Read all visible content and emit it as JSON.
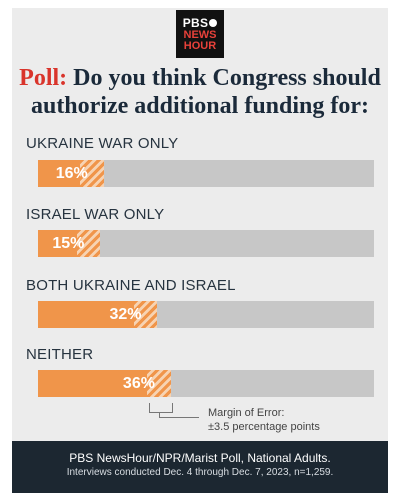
{
  "logo": {
    "line1": "PBS",
    "line2": "NEWS",
    "line3": "HOUR"
  },
  "title": {
    "prefix": "Poll:",
    "line1": " Do you think Congress should",
    "line2": "authorize additional funding for:"
  },
  "chart_data": {
    "type": "bar",
    "orientation": "horizontal",
    "categories": [
      "UKRAINE WAR ONLY",
      "ISRAEL WAR ONLY",
      "BOTH UKRAINE AND ISRAEL",
      "NEITHER"
    ],
    "values": [
      16,
      15,
      32,
      36
    ],
    "value_labels": [
      "16%",
      "15%",
      "32%",
      "36%"
    ],
    "margin_of_error": 3.5,
    "xlim": [
      0,
      100
    ],
    "colors": {
      "bar": "#f0954a",
      "track": "#c7c7c7",
      "moe_hatch": "#f7d3b2"
    }
  },
  "moe_note": {
    "line1": "Margin of Error:",
    "line2": "±3.5 percentage points"
  },
  "footer": {
    "source": "PBS NewsHour/NPR/Marist Poll, National Adults.",
    "detail": "Interviews conducted Dec. 4 through Dec. 7, 2023, n=1,259."
  }
}
